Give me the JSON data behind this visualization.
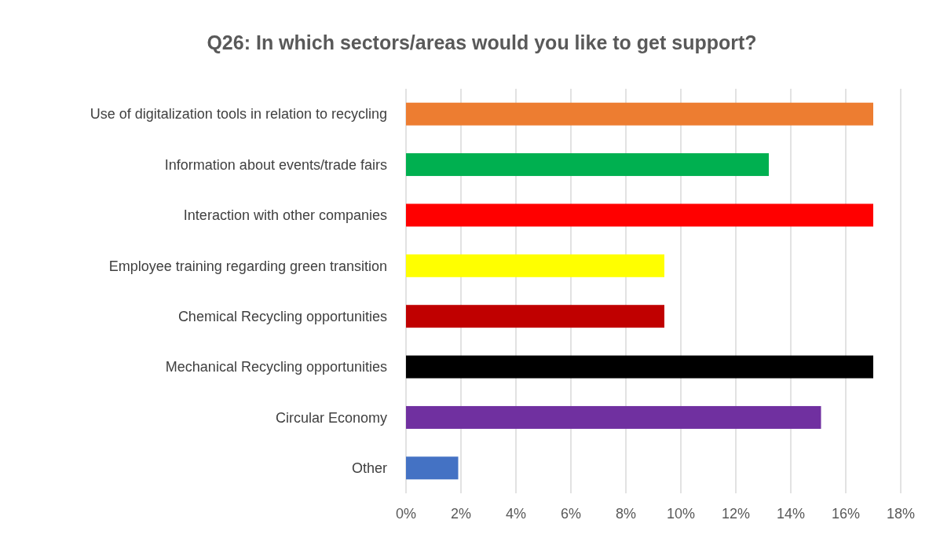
{
  "chart_data": {
    "type": "bar",
    "orientation": "horizontal",
    "title": "Q26: In which sectors/areas would you like to get support?",
    "categories": [
      "Use of digitalization tools in relation to recycling",
      "Information about events/trade fairs",
      "Interaction with other companies",
      "Employee training regarding green transition",
      "Chemical Recycling opportunities",
      "Mechanical Recycling opportunities",
      "Circular Economy",
      "Other"
    ],
    "values": [
      17.0,
      13.2,
      17.0,
      9.4,
      9.4,
      17.0,
      15.1,
      1.9
    ],
    "colors": [
      "#ed7d31",
      "#00b050",
      "#ff0000",
      "#ffff00",
      "#c00000",
      "#000000",
      "#7030a0",
      "#4472c4"
    ],
    "xlim": [
      0,
      18
    ],
    "xticks": [
      {
        "value": 0,
        "label": "0%"
      },
      {
        "value": 2,
        "label": "2%"
      },
      {
        "value": 4,
        "label": "4%"
      },
      {
        "value": 6,
        "label": "6%"
      },
      {
        "value": 8,
        "label": "8%"
      },
      {
        "value": 10,
        "label": "10%"
      },
      {
        "value": 12,
        "label": "12%"
      },
      {
        "value": 14,
        "label": "14%"
      },
      {
        "value": 16,
        "label": "16%"
      },
      {
        "value": 18,
        "label": "18%"
      }
    ],
    "grid": "x"
  }
}
